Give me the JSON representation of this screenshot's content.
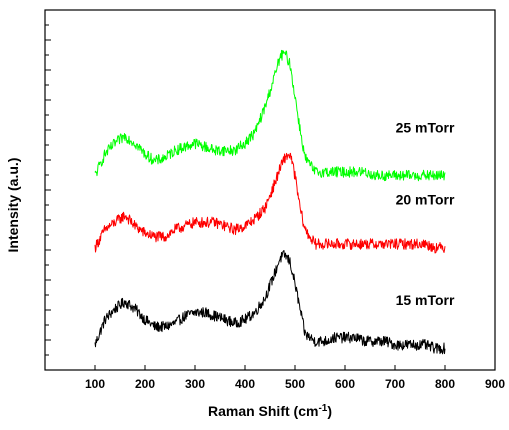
{
  "chart_data": {
    "type": "line",
    "title": "",
    "xlabel": "Raman Shift (cm",
    "xlabel_superscript": "-1",
    "xlabel_suffix": ")",
    "ylabel": "Intensity (a.u.)",
    "xlim": [
      0,
      900
    ],
    "x_ticks": [
      100,
      200,
      300,
      400,
      500,
      600,
      700,
      800,
      900
    ],
    "y_ticks_labeled": false,
    "ylim": [
      0,
      1
    ],
    "grid": false,
    "legend": "none",
    "series": [
      {
        "name": "15 mTorr",
        "label": "15 mTorr",
        "color": "#000000",
        "points": [
          [
            100,
            0.07
          ],
          [
            120,
            0.14
          ],
          [
            140,
            0.17
          ],
          [
            160,
            0.19
          ],
          [
            180,
            0.17
          ],
          [
            200,
            0.14
          ],
          [
            220,
            0.12
          ],
          [
            240,
            0.12
          ],
          [
            260,
            0.13
          ],
          [
            280,
            0.15
          ],
          [
            300,
            0.16
          ],
          [
            320,
            0.16
          ],
          [
            340,
            0.15
          ],
          [
            360,
            0.14
          ],
          [
            380,
            0.13
          ],
          [
            400,
            0.14
          ],
          [
            420,
            0.16
          ],
          [
            440,
            0.2
          ],
          [
            460,
            0.27
          ],
          [
            470,
            0.31
          ],
          [
            480,
            0.32
          ],
          [
            490,
            0.3
          ],
          [
            500,
            0.24
          ],
          [
            510,
            0.17
          ],
          [
            520,
            0.1
          ],
          [
            540,
            0.08
          ],
          [
            560,
            0.08
          ],
          [
            580,
            0.09
          ],
          [
            600,
            0.09
          ],
          [
            620,
            0.09
          ],
          [
            640,
            0.08
          ],
          [
            660,
            0.08
          ],
          [
            680,
            0.08
          ],
          [
            700,
            0.07
          ],
          [
            720,
            0.07
          ],
          [
            740,
            0.07
          ],
          [
            760,
            0.07
          ],
          [
            780,
            0.06
          ],
          [
            800,
            0.06
          ]
        ]
      },
      {
        "name": "20 mTorr",
        "label": "20 mTorr",
        "color": "#ff0000",
        "points": [
          [
            100,
            0.34
          ],
          [
            120,
            0.39
          ],
          [
            140,
            0.41
          ],
          [
            160,
            0.43
          ],
          [
            180,
            0.4
          ],
          [
            200,
            0.38
          ],
          [
            220,
            0.37
          ],
          [
            240,
            0.37
          ],
          [
            260,
            0.39
          ],
          [
            280,
            0.4
          ],
          [
            300,
            0.41
          ],
          [
            320,
            0.41
          ],
          [
            340,
            0.41
          ],
          [
            360,
            0.4
          ],
          [
            380,
            0.39
          ],
          [
            400,
            0.4
          ],
          [
            420,
            0.42
          ],
          [
            440,
            0.45
          ],
          [
            460,
            0.52
          ],
          [
            470,
            0.56
          ],
          [
            480,
            0.59
          ],
          [
            490,
            0.6
          ],
          [
            500,
            0.54
          ],
          [
            510,
            0.45
          ],
          [
            520,
            0.39
          ],
          [
            540,
            0.35
          ],
          [
            560,
            0.35
          ],
          [
            580,
            0.35
          ],
          [
            600,
            0.35
          ],
          [
            620,
            0.35
          ],
          [
            640,
            0.35
          ],
          [
            660,
            0.35
          ],
          [
            680,
            0.35
          ],
          [
            700,
            0.35
          ],
          [
            720,
            0.35
          ],
          [
            740,
            0.35
          ],
          [
            760,
            0.35
          ],
          [
            780,
            0.34
          ],
          [
            800,
            0.34
          ]
        ]
      },
      {
        "name": "25 mTorr",
        "label": "25 mTorr",
        "color": "#00ff00",
        "points": [
          [
            100,
            0.54
          ],
          [
            120,
            0.6
          ],
          [
            140,
            0.63
          ],
          [
            160,
            0.65
          ],
          [
            180,
            0.63
          ],
          [
            200,
            0.6
          ],
          [
            220,
            0.58
          ],
          [
            240,
            0.59
          ],
          [
            260,
            0.61
          ],
          [
            280,
            0.62
          ],
          [
            300,
            0.63
          ],
          [
            320,
            0.62
          ],
          [
            340,
            0.61
          ],
          [
            360,
            0.61
          ],
          [
            380,
            0.61
          ],
          [
            400,
            0.63
          ],
          [
            420,
            0.66
          ],
          [
            440,
            0.73
          ],
          [
            460,
            0.82
          ],
          [
            470,
            0.87
          ],
          [
            480,
            0.88
          ],
          [
            490,
            0.85
          ],
          [
            500,
            0.76
          ],
          [
            510,
            0.67
          ],
          [
            520,
            0.59
          ],
          [
            540,
            0.55
          ],
          [
            560,
            0.55
          ],
          [
            580,
            0.55
          ],
          [
            600,
            0.55
          ],
          [
            620,
            0.55
          ],
          [
            640,
            0.55
          ],
          [
            660,
            0.54
          ],
          [
            680,
            0.54
          ],
          [
            700,
            0.54
          ],
          [
            720,
            0.54
          ],
          [
            740,
            0.54
          ],
          [
            760,
            0.54
          ],
          [
            780,
            0.54
          ],
          [
            800,
            0.54
          ]
        ]
      }
    ]
  }
}
